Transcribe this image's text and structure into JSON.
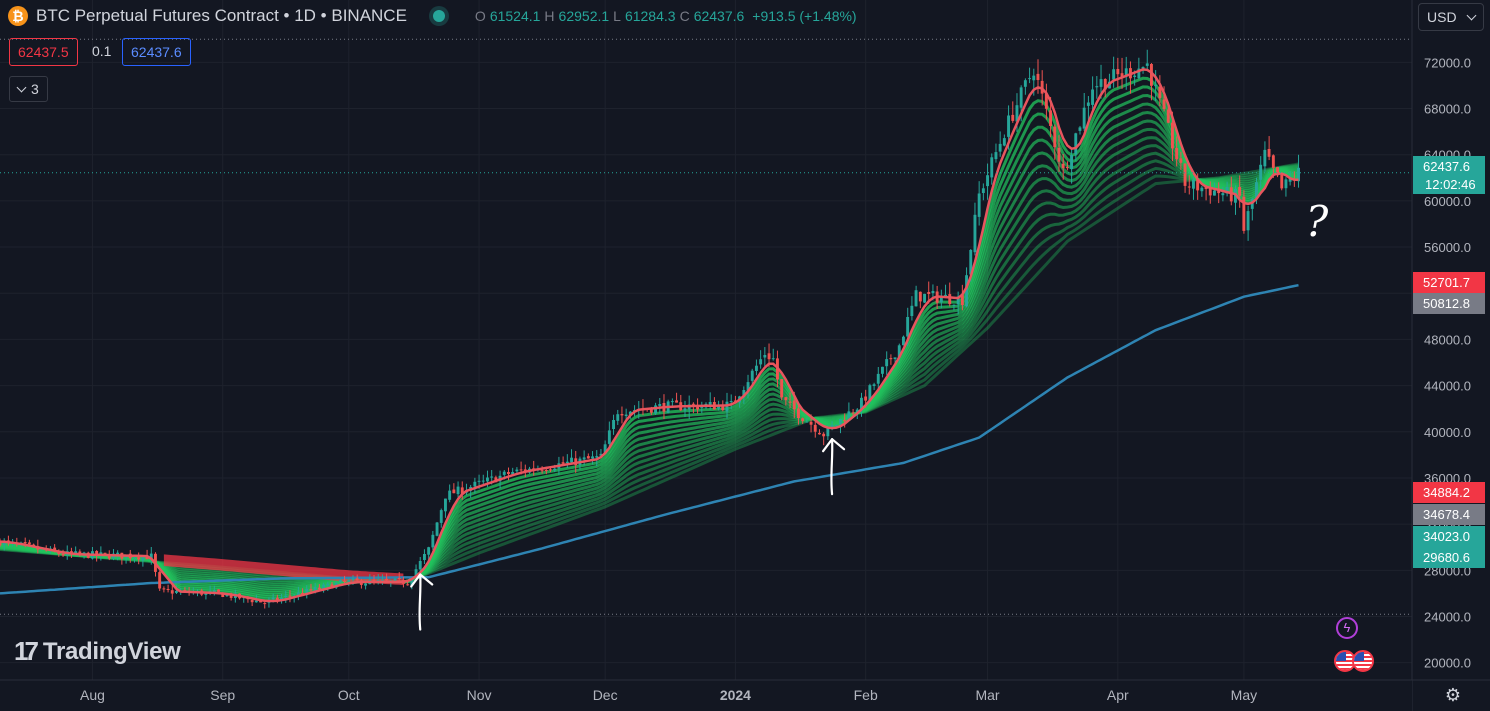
{
  "header": {
    "symbol_icon": "bitcoin-icon",
    "symbol_logo_text": "₿",
    "title": "BTC Perpetual Futures Contract • 1D • BINANCE",
    "status_icon": "market-open-dot-icon",
    "ohlc": {
      "o_label": "O",
      "o": "61524.1",
      "h_label": "H",
      "h": "62952.1",
      "l_label": "L",
      "l": "61284.3",
      "c_label": "C",
      "c": "62437.6",
      "change": "+913.5 (+1.48%)"
    }
  },
  "trade": {
    "bid": "62437.5",
    "spread": "0.1",
    "ask": "62437.6"
  },
  "indicators_toggle": {
    "count": "3",
    "icon": "chevron-down-icon"
  },
  "currency": {
    "value": "USD",
    "icon": "chevron-down-icon"
  },
  "brand": {
    "mark": "17",
    "name": "TradingView"
  },
  "settings_icon": "gear-icon",
  "settings_glyph": "⚙",
  "events": {
    "bolt_icon": "lightning-event-icon",
    "bolt_glyph": "ϟ",
    "flag_icon": "us-flag-event-icon"
  },
  "colors": {
    "background": "#131722",
    "up": "#26a69a",
    "down": "#ef5350",
    "ema200": "#2e84b3",
    "fast_ema": "#e8555e",
    "ribbon_green": "#22c55e",
    "ribbon_red": "#f23645"
  },
  "chart_data": {
    "type": "candlestick",
    "title": "BTC Perpetual Futures Contract • 1D • BINANCE",
    "x_ticks": [
      "Aug",
      "Sep",
      "Oct",
      "Nov",
      "Dec",
      "2024",
      "Feb",
      "Mar",
      "Apr",
      "May"
    ],
    "x_tick_dates": [
      "2023-08-01",
      "2023-09-01",
      "2023-10-01",
      "2023-11-01",
      "2023-12-01",
      "2024-01-01",
      "2024-02-01",
      "2024-03-01",
      "2024-04-01",
      "2024-05-01"
    ],
    "x_range": [
      "2023-07-10",
      "2024-06-10"
    ],
    "y_range": [
      18500,
      74800
    ],
    "y_ticks": [
      20000,
      24000,
      28000,
      32000,
      36000,
      40000,
      44000,
      48000,
      52000,
      56000,
      60000,
      64000,
      68000,
      72000
    ],
    "y_tick_labels": [
      "20000.0",
      "24000.0",
      "28000.0",
      "32000.0",
      "36000.0",
      "40000.0",
      "44000.0",
      "48000.0",
      "52000.0",
      "56000.0",
      "60000.0",
      "64000.0",
      "68000.0",
      "72000.0"
    ],
    "price_path": [
      [
        "2023-07-10",
        30500
      ],
      [
        "2023-07-25",
        29400
      ],
      [
        "2023-08-15",
        29200
      ],
      [
        "2023-08-17",
        26200
      ],
      [
        "2023-08-31",
        26000
      ],
      [
        "2023-09-11",
        25200
      ],
      [
        "2023-09-30",
        27000
      ],
      [
        "2023-10-15",
        27000
      ],
      [
        "2023-10-20",
        29800
      ],
      [
        "2023-10-24",
        34500
      ],
      [
        "2023-11-09",
        36500
      ],
      [
        "2023-11-30",
        37800
      ],
      [
        "2023-12-04",
        41800
      ],
      [
        "2023-12-15",
        42200
      ],
      [
        "2023-12-31",
        42300
      ],
      [
        "2024-01-08",
        46800
      ],
      [
        "2024-01-10",
        46300
      ],
      [
        "2024-01-12",
        42800
      ],
      [
        "2024-01-22",
        39800
      ],
      [
        "2024-01-31",
        42500
      ],
      [
        "2024-02-09",
        47500
      ],
      [
        "2024-02-13",
        51800
      ],
      [
        "2024-02-24",
        51500
      ],
      [
        "2024-02-28",
        60500
      ],
      [
        "2024-03-05",
        66000
      ],
      [
        "2024-03-12",
        71500
      ],
      [
        "2024-03-19",
        62500
      ],
      [
        "2024-03-26",
        70000
      ],
      [
        "2024-04-08",
        71800
      ],
      [
        "2024-04-17",
        61500
      ],
      [
        "2024-04-30",
        60300
      ],
      [
        "2024-05-01",
        57500
      ],
      [
        "2024-05-06",
        64000
      ],
      [
        "2024-05-10",
        61000
      ],
      [
        "2024-05-14",
        62437.6
      ]
    ],
    "ribbon_slow_path": [
      [
        "2023-07-10",
        29800
      ],
      [
        "2023-08-31",
        28300
      ],
      [
        "2023-10-01",
        27300
      ],
      [
        "2023-10-15",
        27000
      ],
      [
        "2023-11-01",
        29500
      ],
      [
        "2023-12-01",
        33500
      ],
      [
        "2024-01-01",
        38500
      ],
      [
        "2024-01-20",
        41200
      ],
      [
        "2024-02-01",
        41700
      ],
      [
        "2024-02-15",
        44000
      ],
      [
        "2024-03-01",
        49000
      ],
      [
        "2024-03-20",
        56500
      ],
      [
        "2024-04-10",
        61500
      ],
      [
        "2024-04-25",
        62000
      ],
      [
        "2024-05-14",
        63200
      ]
    ],
    "ema200_path": [
      [
        "2023-07-10",
        26000
      ],
      [
        "2023-08-15",
        26900
      ],
      [
        "2023-09-15",
        27300
      ],
      [
        "2023-10-20",
        27400
      ],
      [
        "2023-11-15",
        29800
      ],
      [
        "2023-12-15",
        32800
      ],
      [
        "2024-01-15",
        35700
      ],
      [
        "2024-02-10",
        37300
      ],
      [
        "2024-02-28",
        39500
      ],
      [
        "2024-03-20",
        44700
      ],
      [
        "2024-04-10",
        48800
      ],
      [
        "2024-05-01",
        51700
      ],
      [
        "2024-05-14",
        52700
      ]
    ],
    "price_line": 62437.6,
    "dotted_lines": [
      74000,
      24200
    ],
    "axis_labels": [
      {
        "text": "62437.6",
        "subtext": "12:02:46",
        "kind": "last_price"
      },
      {
        "text": "52701.7",
        "kind": "red"
      },
      {
        "text": "50812.8",
        "kind": "grey"
      },
      {
        "text": "34884.2",
        "kind": "red"
      },
      {
        "text": "34678.4",
        "kind": "grey"
      },
      {
        "text": "34023.0",
        "kind": "teal"
      },
      {
        "text": "29680.6",
        "kind": "teal"
      }
    ],
    "annotations": [
      {
        "type": "arrow",
        "at": "2023-10-18",
        "label": "up-arrow-annotation"
      },
      {
        "type": "arrow",
        "at": "2024-01-24",
        "label": "up-arrow-annotation"
      },
      {
        "type": "text",
        "text": "?",
        "at": "2024-05-20"
      }
    ]
  }
}
